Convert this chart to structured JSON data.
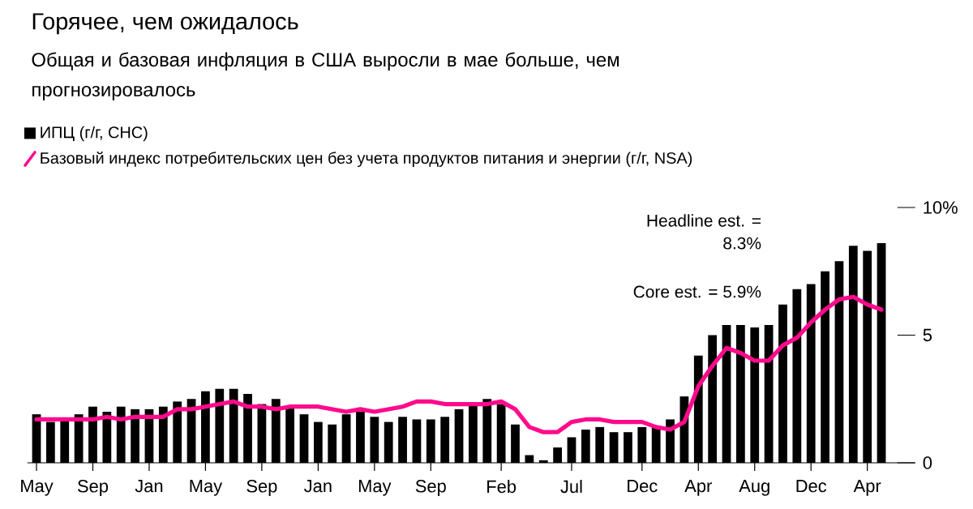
{
  "chart_data": {
    "type": "bar",
    "title": "Горячее, чем ожидалось",
    "subtitle": "Общая и базовая инфляция в США выросли в мае больше, чем прогнозировалось",
    "categories": [
      "May",
      null,
      null,
      null,
      "Sep",
      null,
      null,
      null,
      "Jan",
      null,
      null,
      null,
      "May",
      null,
      null,
      null,
      "Sep",
      null,
      null,
      null,
      "Jan",
      null,
      null,
      null,
      "May",
      null,
      null,
      null,
      "Sep",
      null,
      null,
      null,
      null,
      "Feb",
      null,
      null,
      null,
      null,
      "Jul",
      null,
      null,
      null,
      null,
      "Dec",
      null,
      null,
      null,
      "Apr",
      null,
      null,
      null,
      "Aug",
      null,
      null,
      null,
      "Dec",
      null,
      null,
      null,
      "Apr",
      null
    ],
    "series": [
      {
        "name": "ИПЦ (г/г, СНС)",
        "color": "#000000",
        "values": [
          1.9,
          1.6,
          1.7,
          1.9,
          2.2,
          2.0,
          2.2,
          2.1,
          2.1,
          2.2,
          2.4,
          2.5,
          2.8,
          2.9,
          2.9,
          2.7,
          2.3,
          2.5,
          2.2,
          1.9,
          1.6,
          1.5,
          1.9,
          2.0,
          1.8,
          1.6,
          1.8,
          1.7,
          1.7,
          1.8,
          2.1,
          2.3,
          2.5,
          2.3,
          1.5,
          0.3,
          0.1,
          0.6,
          1.0,
          1.3,
          1.4,
          1.2,
          1.2,
          1.4,
          1.4,
          1.7,
          2.6,
          4.2,
          5.0,
          5.4,
          5.4,
          5.3,
          5.4,
          6.2,
          6.8,
          7.0,
          7.5,
          7.9,
          8.5,
          8.3,
          8.6
        ]
      },
      {
        "name": "Базовый индекс потребительских цен без учета продуктов питания и энергии (г/г, NSA)",
        "type": "line",
        "color": "#ff0a8c",
        "values": [
          1.7,
          1.7,
          1.7,
          1.7,
          1.7,
          1.8,
          1.7,
          1.8,
          1.8,
          1.8,
          2.1,
          2.1,
          2.2,
          2.3,
          2.4,
          2.2,
          2.2,
          2.1,
          2.2,
          2.2,
          2.2,
          2.1,
          2.0,
          2.1,
          2.0,
          2.1,
          2.2,
          2.4,
          2.4,
          2.3,
          2.3,
          2.3,
          2.3,
          2.4,
          2.1,
          1.4,
          1.2,
          1.2,
          1.6,
          1.7,
          1.7,
          1.6,
          1.6,
          1.6,
          1.4,
          1.3,
          1.6,
          3.0,
          3.8,
          4.5,
          4.3,
          4.0,
          4.0,
          4.6,
          4.9,
          5.5,
          6.0,
          6.4,
          6.5,
          6.2,
          6.0
        ]
      }
    ],
    "ylim": [
      0,
      10
    ],
    "yticks": [
      0,
      5,
      {
        "value": 10,
        "label": "10%"
      }
    ],
    "legend": "top left",
    "annotations": [
      "Headline est. = 8.3%",
      "Core est. = 5.9%"
    ]
  }
}
